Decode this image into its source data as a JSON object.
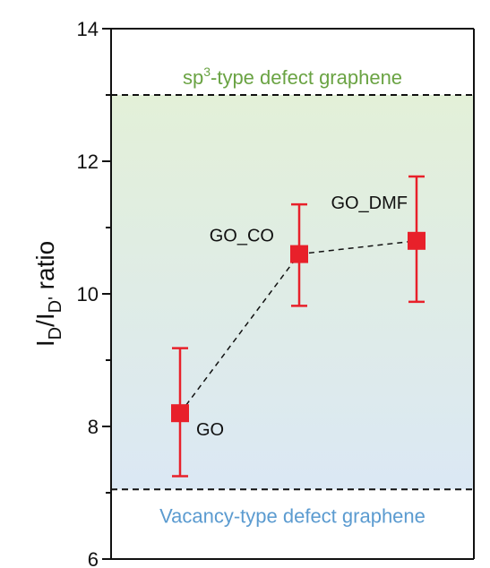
{
  "chart_data": {
    "type": "scatter",
    "title": "",
    "ylabel": {
      "main": "I",
      "sub1": "D",
      "sep": "/I",
      "sub2": "D'",
      "suffix": " ratio"
    },
    "ylim": [
      6,
      14
    ],
    "yticks": [
      "6",
      "8",
      "10",
      "12",
      "14"
    ],
    "grid": false,
    "series": [
      {
        "points": [
          {
            "label": "GO",
            "y": 8.2,
            "err_low": 7.25,
            "err_high": 9.18
          },
          {
            "label": "GO_CO",
            "y": 10.6,
            "err_low": 9.82,
            "err_high": 11.35
          },
          {
            "label": "GO_DMF",
            "y": 10.8,
            "err_low": 9.88,
            "err_high": 11.77
          }
        ]
      }
    ],
    "reference_lines": [
      {
        "y": 13.0,
        "label_parts": [
          "sp",
          "3",
          "-type defect graphene"
        ],
        "color": "#6aa343"
      },
      {
        "y": 7.05,
        "label": "Vacancy-type defect graphene",
        "color": "#5b9bd0"
      }
    ],
    "colors": {
      "marker": "#e8202a",
      "band_top": "#e3f0d8",
      "band_bottom": "#dbe8f4",
      "axis": "#111111",
      "connector": "#111111"
    }
  }
}
